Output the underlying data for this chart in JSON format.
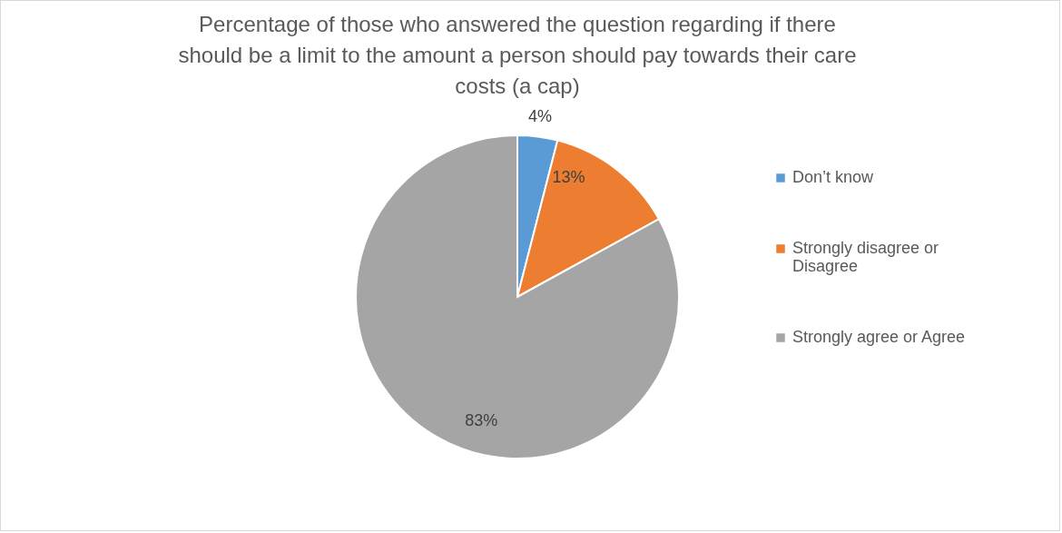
{
  "chart_data": {
    "type": "pie",
    "title": "Percentage of those who answered the question regarding if there should be a limit to the amount a person should pay towards their care costs (a cap)",
    "categories": [
      "Don’t know",
      "Strongly disagree or Disagree",
      "Strongly agree or Agree"
    ],
    "values": [
      4,
      13,
      83
    ],
    "value_labels": [
      "4%",
      "13%",
      "83%"
    ],
    "colors": [
      "#5b9bd5",
      "#ed7d31",
      "#a5a5a5"
    ],
    "legend": "right"
  }
}
